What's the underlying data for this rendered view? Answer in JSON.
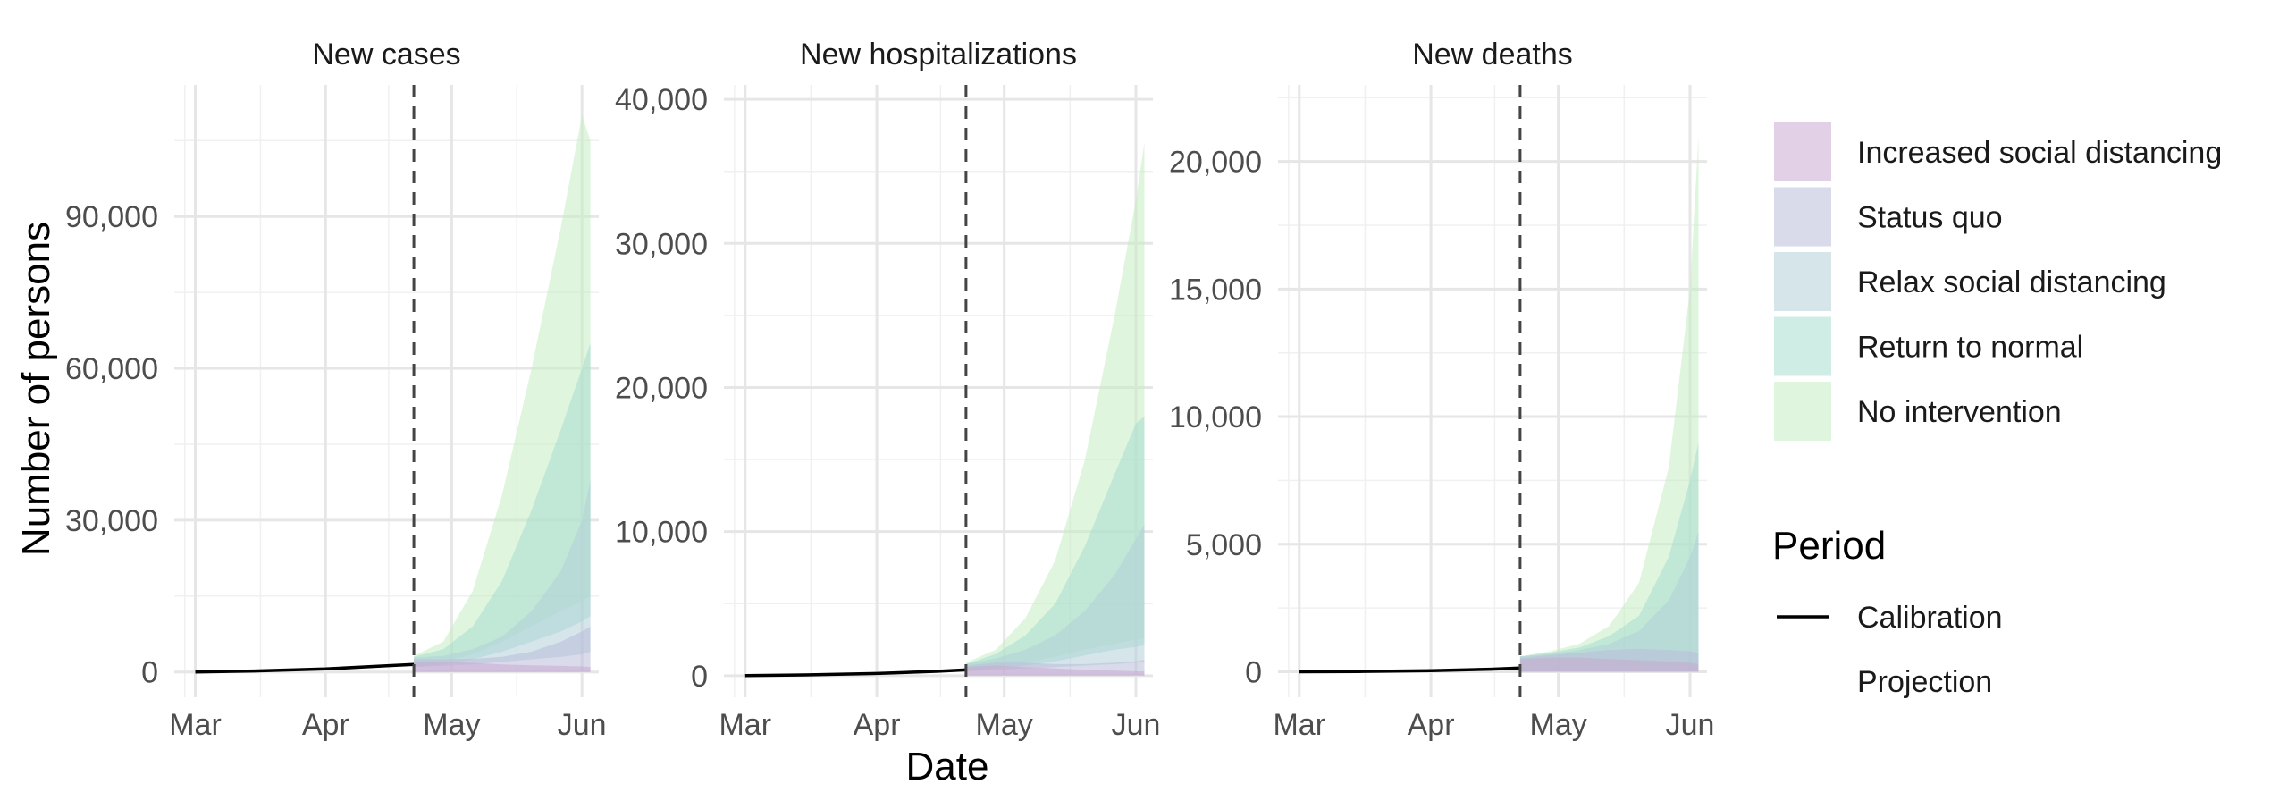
{
  "chart_data": {
    "type": "area",
    "ylabel": "Number of persons",
    "xlabel": "Date",
    "grid": true,
    "legend_position": "right",
    "x_axis": {
      "min": "2020-02-25",
      "max": "2020-06-05",
      "ticks": [
        "Mar",
        "Apr",
        "May",
        "Jun"
      ],
      "tick_dates": [
        "2020-03-01",
        "2020-04-01",
        "2020-05-01",
        "2020-06-01"
      ]
    },
    "projection_start": "2020-04-22",
    "scenarios": [
      {
        "name": "Increased social distancing",
        "color": "#c9a9d1"
      },
      {
        "name": "Status quo",
        "color": "#b9bcd9"
      },
      {
        "name": "Relax social distancing",
        "color": "#b3cfd9"
      },
      {
        "name": "Return to normal",
        "color": "#a7ddd0"
      },
      {
        "name": "No intervention",
        "color": "#c5ecc2"
      }
    ],
    "period_legend": {
      "title": "Period",
      "items": [
        {
          "name": "Calibration",
          "line": "solid"
        },
        {
          "name": "Projection",
          "line": "none"
        }
      ]
    },
    "facets": [
      {
        "title": "New cases",
        "ylim": [
          -5000,
          116000
        ],
        "yticks": [
          0,
          30000,
          60000,
          90000
        ],
        "ytick_labels": [
          "0",
          "30,000",
          "60,000",
          "90,000"
        ],
        "calibration": {
          "x": [
            "2020-03-01",
            "2020-03-15",
            "2020-04-01",
            "2020-04-15",
            "2020-04-22"
          ],
          "y": [
            0,
            200,
            600,
            1200,
            1500
          ]
        },
        "projection_x": [
          "2020-04-22",
          "2020-04-29",
          "2020-05-06",
          "2020-05-13",
          "2020-05-20",
          "2020-05-27",
          "2020-06-01",
          "2020-06-03"
        ],
        "series": [
          {
            "name": "Increased social distancing",
            "upper": [
              2000,
              2000,
              1800,
              1500,
              1300,
              1200,
              1100,
              1000
            ],
            "lower": [
              0,
              0,
              0,
              0,
              0,
              0,
              0,
              0
            ]
          },
          {
            "name": "Status quo",
            "upper": [
              2500,
              2500,
              2600,
              3000,
              4000,
              6000,
              8000,
              9000
            ],
            "lower": [
              0,
              0,
              0,
              0,
              0,
              0,
              0,
              0
            ]
          },
          {
            "name": "Relax social distancing",
            "upper": [
              2800,
              3200,
              4500,
              7000,
              12000,
              20000,
              30000,
              38000
            ],
            "lower": [
              1000,
              1200,
              1500,
              2000,
              2500,
              3000,
              3500,
              4000
            ]
          },
          {
            "name": "Return to normal",
            "upper": [
              3000,
              4500,
              9000,
              18000,
              32000,
              48000,
              60000,
              65000
            ],
            "lower": [
              1000,
              1500,
              2500,
              4000,
              6000,
              8000,
              10000,
              11000
            ]
          },
          {
            "name": "No intervention",
            "upper": [
              3200,
              6000,
              16000,
              35000,
              60000,
              88000,
              110000,
              105000
            ],
            "lower": [
              1000,
              2000,
              3500,
              6000,
              9000,
              12000,
              14000,
              15000
            ]
          }
        ]
      },
      {
        "title": "New hospitalizations",
        "ylim": [
          -1500,
          41000
        ],
        "yticks": [
          0,
          10000,
          20000,
          30000,
          40000
        ],
        "ytick_labels": [
          "0",
          "10,000",
          "20,000",
          "30,000",
          "40,000"
        ],
        "calibration": {
          "x": [
            "2020-03-01",
            "2020-03-15",
            "2020-04-01",
            "2020-04-15",
            "2020-04-22"
          ],
          "y": [
            0,
            50,
            150,
            300,
            400
          ]
        },
        "projection_x": [
          "2020-04-22",
          "2020-04-29",
          "2020-05-06",
          "2020-05-13",
          "2020-05-20",
          "2020-05-27",
          "2020-06-01",
          "2020-06-03"
        ],
        "series": [
          {
            "name": "Increased social distancing",
            "upper": [
              600,
              700,
              600,
              500,
              400,
              350,
              300,
              300
            ],
            "lower": [
              0,
              0,
              0,
              0,
              0,
              0,
              0,
              0
            ]
          },
          {
            "name": "Status quo",
            "upper": [
              700,
              900,
              900,
              800,
              800,
              900,
              1000,
              1100
            ],
            "lower": [
              0,
              0,
              0,
              0,
              0,
              0,
              0,
              0
            ]
          },
          {
            "name": "Relax social distancing",
            "upper": [
              800,
              1200,
              1800,
              2800,
              4500,
              7000,
              9500,
              10500
            ],
            "lower": [
              300,
              400,
              500,
              600,
              700,
              800,
              900,
              1000
            ]
          },
          {
            "name": "Return to normal",
            "upper": [
              800,
              1500,
              2800,
              5000,
              9000,
              14000,
              17500,
              18000
            ],
            "lower": [
              300,
              500,
              700,
              1000,
              1400,
              1800,
              2000,
              2100
            ]
          },
          {
            "name": "No intervention",
            "upper": [
              900,
              1800,
              4000,
              8000,
              15000,
              25000,
              33000,
              37000
            ],
            "lower": [
              300,
              600,
              900,
              1300,
              1800,
              2200,
              2500,
              2600
            ]
          }
        ]
      },
      {
        "title": "New deaths",
        "ylim": [
          -1000,
          23000
        ],
        "yticks": [
          0,
          5000,
          10000,
          15000,
          20000
        ],
        "ytick_labels": [
          "0",
          "5,000",
          "10,000",
          "15,000",
          "20,000"
        ],
        "calibration": {
          "x": [
            "2020-03-01",
            "2020-03-15",
            "2020-04-01",
            "2020-04-15",
            "2020-04-22"
          ],
          "y": [
            0,
            10,
            40,
            100,
            150
          ]
        },
        "projection_x": [
          "2020-04-22",
          "2020-04-29",
          "2020-05-06",
          "2020-05-13",
          "2020-05-20",
          "2020-05-27",
          "2020-06-01",
          "2020-06-03"
        ],
        "series": [
          {
            "name": "Increased social distancing",
            "upper": [
              500,
              550,
              550,
              500,
              450,
              400,
              350,
              300
            ],
            "lower": [
              0,
              0,
              0,
              0,
              0,
              0,
              0,
              0
            ]
          },
          {
            "name": "Status quo",
            "upper": [
              550,
              650,
              750,
              850,
              900,
              850,
              800,
              750
            ],
            "lower": [
              0,
              0,
              0,
              0,
              0,
              0,
              0,
              0
            ]
          },
          {
            "name": "Relax social distancing",
            "upper": [
              600,
              700,
              850,
              1100,
              1600,
              2800,
              4500,
              5500
            ],
            "lower": [
              0,
              0,
              0,
              0,
              0,
              0,
              0,
              0
            ]
          },
          {
            "name": "Return to normal",
            "upper": [
              600,
              750,
              950,
              1400,
              2200,
              4500,
              7500,
              9000
            ],
            "lower": [
              0,
              0,
              0,
              0,
              0,
              0,
              0,
              0
            ]
          },
          {
            "name": "No intervention",
            "upper": [
              600,
              800,
              1100,
              1800,
              3500,
              8000,
              15000,
              21000
            ],
            "lower": [
              0,
              0,
              0,
              0,
              0,
              0,
              0,
              0
            ]
          }
        ]
      }
    ]
  }
}
